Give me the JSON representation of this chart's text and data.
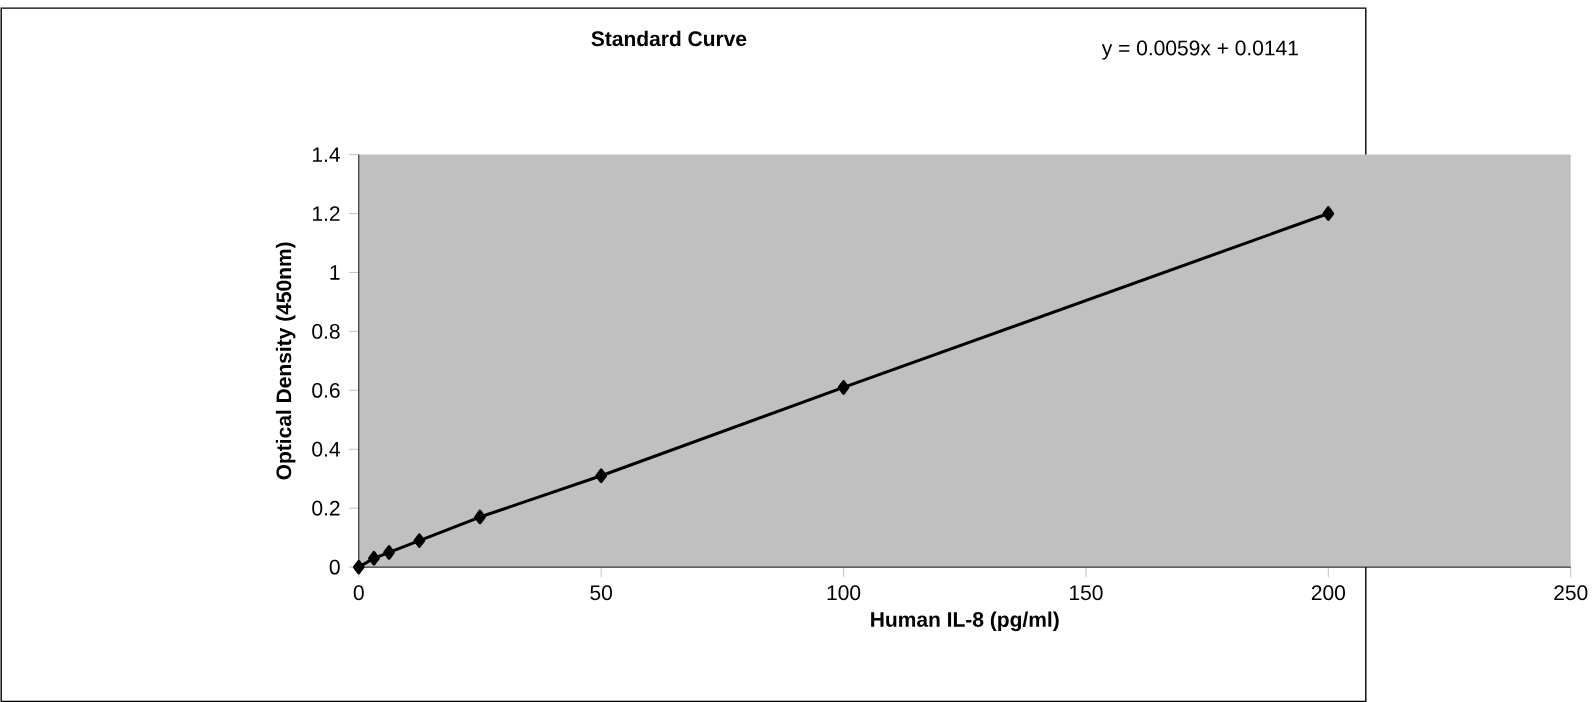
{
  "chart_data": {
    "type": "line",
    "title": "Standard Curve",
    "xlabel": "Human IL-8 (pg/ml)",
    "ylabel": "Optical Density (450nm)",
    "annotations": [
      "y = 0.0059x + 0.0141"
    ],
    "x": [
      0,
      3.125,
      6.25,
      12.5,
      25,
      50,
      100,
      200
    ],
    "series": [
      {
        "color": "#000000",
        "values": [
          0,
          0.03,
          0.05,
          0.09,
          0.17,
          0.31,
          0.61,
          1.2
        ]
      }
    ],
    "marker": "diamond",
    "line_style": "solid",
    "xlim": [
      0,
      250
    ],
    "xticks": [
      0,
      50,
      100,
      150,
      200,
      250
    ],
    "ylim": [
      0,
      1.4
    ],
    "yticks": [
      0,
      0.2,
      0.4,
      0.6,
      0.8,
      1,
      1.2,
      1.4
    ]
  }
}
